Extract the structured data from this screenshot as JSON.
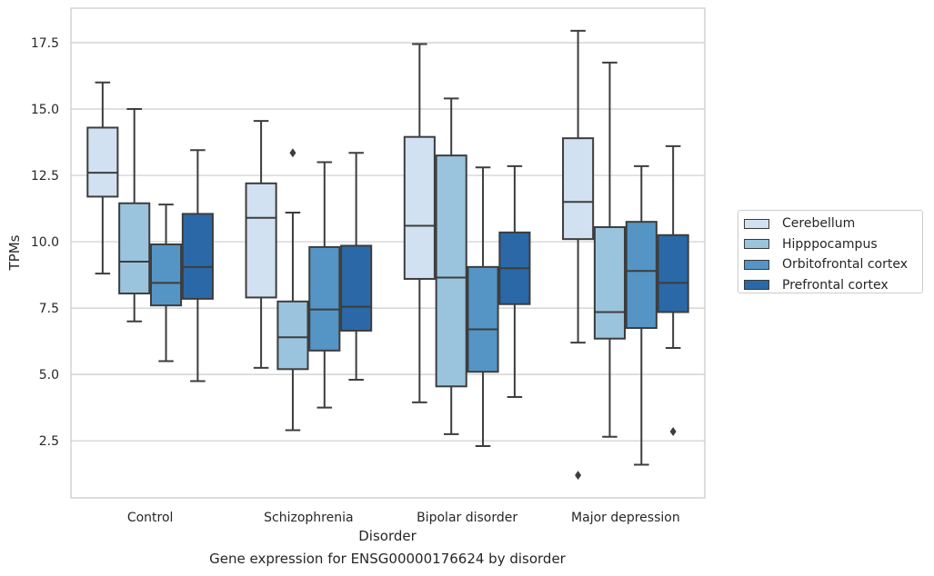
{
  "chart_data": {
    "type": "box",
    "title": "Gene expression for ENSG00000176624 by disorder",
    "xlabel": "Disorder",
    "ylabel": "TPMs",
    "categories": [
      "Control",
      "Schizophrenia",
      "Bipolar disorder",
      "Major depression"
    ],
    "yticks": [
      "2.5",
      "5.0",
      "7.5",
      "10.0",
      "12.5",
      "15.0",
      "17.5"
    ],
    "ylim": [
      0.35,
      18.8
    ],
    "grid": "horizontal",
    "legend_position": "right",
    "series": [
      {
        "name": "Cerebellum",
        "color": "#d1e1f1",
        "boxes": [
          {
            "whisker_low": 8.8,
            "q1": 11.7,
            "median": 12.6,
            "q3": 14.3,
            "whisker_high": 16.0,
            "outliers": []
          },
          {
            "whisker_low": 5.25,
            "q1": 7.9,
            "median": 10.9,
            "q3": 12.2,
            "whisker_high": 14.55,
            "outliers": []
          },
          {
            "whisker_low": 3.95,
            "q1": 8.6,
            "median": 10.6,
            "q3": 13.95,
            "whisker_high": 17.45,
            "outliers": []
          },
          {
            "whisker_low": 6.2,
            "q1": 10.1,
            "median": 11.5,
            "q3": 13.9,
            "whisker_high": 17.95,
            "outliers": [
              1.2
            ]
          }
        ]
      },
      {
        "name": "Hipppocampus",
        "color": "#9ac4dd",
        "boxes": [
          {
            "whisker_low": 7.0,
            "q1": 8.05,
            "median": 9.25,
            "q3": 11.45,
            "whisker_high": 15.0,
            "outliers": []
          },
          {
            "whisker_low": 2.9,
            "q1": 5.2,
            "median": 6.4,
            "q3": 7.75,
            "whisker_high": 11.1,
            "outliers": [
              13.35
            ]
          },
          {
            "whisker_low": 2.75,
            "q1": 4.55,
            "median": 8.65,
            "q3": 13.25,
            "whisker_high": 15.4,
            "outliers": []
          },
          {
            "whisker_low": 2.65,
            "q1": 6.35,
            "median": 7.35,
            "q3": 10.55,
            "whisker_high": 16.75,
            "outliers": []
          }
        ]
      },
      {
        "name": "Orbitofrontal cortex",
        "color": "#5495c5",
        "boxes": [
          {
            "whisker_low": 5.5,
            "q1": 7.6,
            "median": 8.45,
            "q3": 9.9,
            "whisker_high": 11.4,
            "outliers": []
          },
          {
            "whisker_low": 3.75,
            "q1": 5.9,
            "median": 7.45,
            "q3": 9.8,
            "whisker_high": 13.0,
            "outliers": []
          },
          {
            "whisker_low": 2.3,
            "q1": 5.1,
            "median": 6.7,
            "q3": 9.05,
            "whisker_high": 12.8,
            "outliers": []
          },
          {
            "whisker_low": 1.6,
            "q1": 6.75,
            "median": 8.9,
            "q3": 10.75,
            "whisker_high": 12.85,
            "outliers": []
          }
        ]
      },
      {
        "name": "Prefrontal cortex",
        "color": "#2b68a7",
        "boxes": [
          {
            "whisker_low": 4.75,
            "q1": 7.85,
            "median": 9.05,
            "q3": 11.05,
            "whisker_high": 13.45,
            "outliers": []
          },
          {
            "whisker_low": 4.8,
            "q1": 6.65,
            "median": 7.55,
            "q3": 9.85,
            "whisker_high": 13.35,
            "outliers": []
          },
          {
            "whisker_low": 4.15,
            "q1": 7.65,
            "median": 9.0,
            "q3": 10.35,
            "whisker_high": 12.85,
            "outliers": []
          },
          {
            "whisker_low": 6.0,
            "q1": 7.35,
            "median": 8.45,
            "q3": 10.25,
            "whisker_high": 13.6,
            "outliers": [
              2.85
            ]
          }
        ]
      }
    ]
  }
}
